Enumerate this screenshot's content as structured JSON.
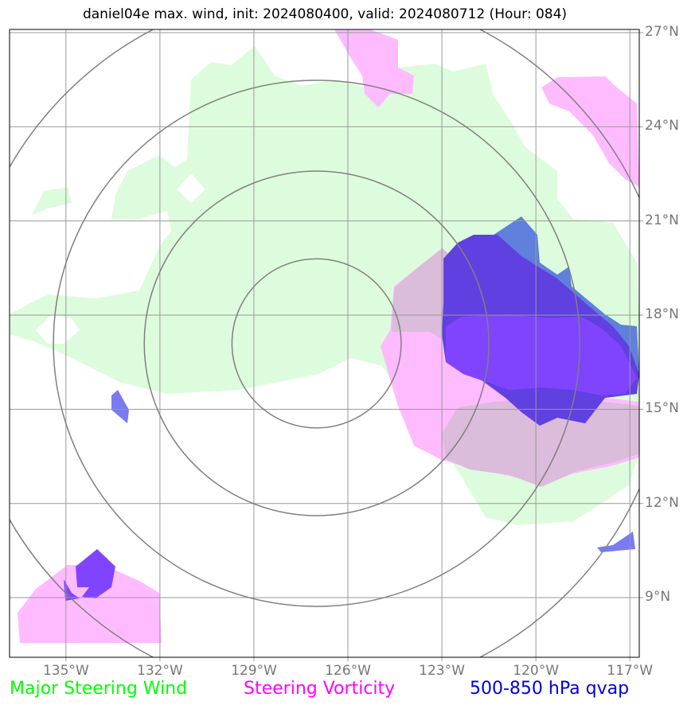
{
  "title": "daniel04e max. wind, init: 2024080400, valid: 2024080712 (Hour: 084)",
  "map": {
    "extent": {
      "lon_min": -136.8,
      "lon_max": -116.7,
      "lat_min": 7.1,
      "lat_max": 27.1
    },
    "center": {
      "lon": -127.0,
      "lat": 17.1
    },
    "lat_ticks": [
      {
        "lat": 27,
        "label": "27°N"
      },
      {
        "lat": 24,
        "label": "24°N"
      },
      {
        "lat": 21,
        "label": "21°N"
      },
      {
        "lat": 18,
        "label": "18°N"
      },
      {
        "lat": 15,
        "label": "15°N"
      },
      {
        "lat": 12,
        "label": "12°N"
      },
      {
        "lat": 9,
        "label": "9°N"
      }
    ],
    "lon_ticks": [
      {
        "lon": -135,
        "label": "135°W"
      },
      {
        "lon": -132,
        "label": "132°W"
      },
      {
        "lon": -129,
        "label": "129°W"
      },
      {
        "lon": -126,
        "label": "126°W"
      },
      {
        "lon": -123,
        "label": "123°W"
      },
      {
        "lon": -120,
        "label": "120°W"
      },
      {
        "lon": -117,
        "label": "117°W"
      }
    ],
    "range_rings_deg": [
      2.7,
      5.5,
      8.4,
      11.3
    ],
    "colors": {
      "grid": "#999999",
      "ring": "#808080",
      "steering_wind": "#ddfcdd",
      "steering_vorticity": "#ffbbff",
      "vorticity_overlap": "#dbbcdb",
      "qvap_light": "#7a7af2",
      "qvap_medium": "#5f80dc",
      "qvap_dark": "#6040e0",
      "qvap_bright": "#8044ff"
    }
  },
  "legend": [
    {
      "label": "Major Steering Wind",
      "color": "#00ff00"
    },
    {
      "label": "Steering Vorticity",
      "color": "#ff00ff"
    },
    {
      "label": "500-850 hPa qvap",
      "color": "#0000dd"
    }
  ]
}
